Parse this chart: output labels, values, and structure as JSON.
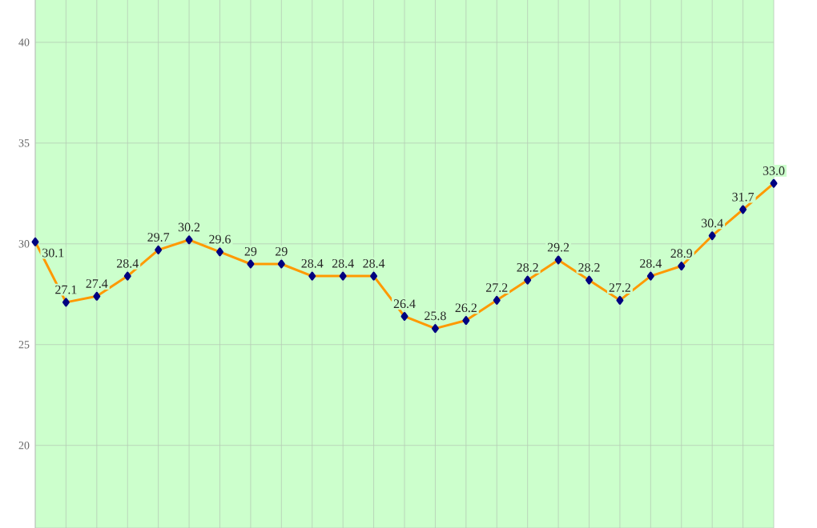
{
  "chart_data": {
    "type": "line",
    "categories": [
      null,
      null,
      null,
      null,
      null,
      null,
      null,
      null,
      null,
      null,
      null,
      null,
      null,
      null,
      null,
      null,
      null,
      null,
      null,
      null,
      null,
      null,
      null,
      null,
      null
    ],
    "series": [
      {
        "color": "#ff9900",
        "values": [
          30.1,
          27.1,
          27.4,
          28.4,
          29.7,
          30.2,
          29.6,
          29,
          29,
          28.4,
          28.4,
          28.4,
          26.4,
          25.8,
          26.2,
          27.2,
          28.2,
          29.2,
          28.2,
          27.2,
          28.4,
          28.9,
          30.4,
          31.7,
          33.0
        ],
        "value_labels": [
          "30.1",
          "27.1",
          "27.4",
          "28.4",
          "29.7",
          "30.2",
          "29.6",
          "29",
          "29",
          "28.4",
          "28.4",
          "28.4",
          "26.4",
          "25.8",
          "26.2",
          "27.2",
          "28.2",
          "29.2",
          "28.2",
          "27.2",
          "28.4",
          "28.9",
          "30.4",
          "31.7",
          "33.0"
        ]
      }
    ],
    "ylim": [
      15.9,
      42.1
    ],
    "yticks": [
      20,
      25,
      30,
      35,
      40
    ],
    "grid": true,
    "marker": "diamond",
    "line_style": "solid"
  }
}
